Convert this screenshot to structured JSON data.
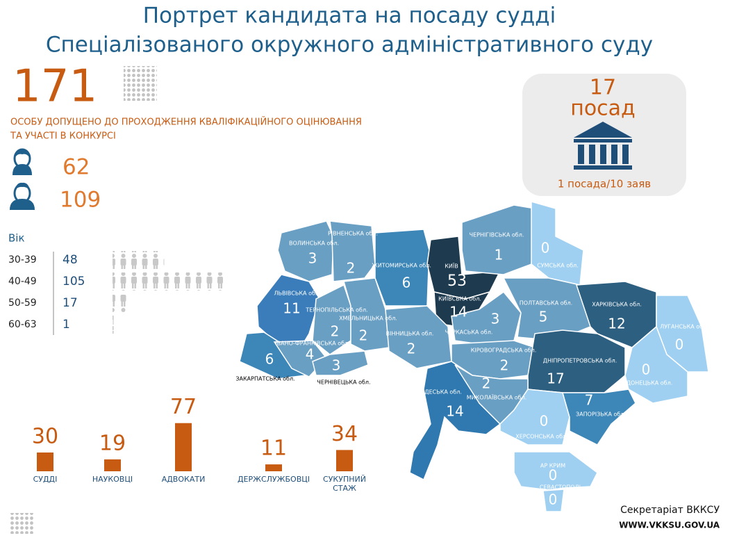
{
  "header": {
    "title_lines": [
      "Портрет кандидата на посаду судді",
      "Спеціалізованого окружного адміністративного суду"
    ]
  },
  "total": {
    "value": "171",
    "description_lines": [
      "ОСОБУ ДОПУЩЕНО ДО ПРОХОДЖЕННЯ КВАЛІФІКАЦІЙНОГО ОЦІНЮВАННЯ",
      "ТА УЧАСТІ В КОНКУРСІ"
    ]
  },
  "gender": {
    "female": 62,
    "male": 109
  },
  "age": {
    "label": "Вік",
    "groups": [
      {
        "range": "30-39",
        "count": 48
      },
      {
        "range": "40-49",
        "count": 105
      },
      {
        "range": "50-59",
        "count": 17
      },
      {
        "range": "60-63",
        "count": 1
      }
    ]
  },
  "chart_data": {
    "type": "bar",
    "categories": [
      "СУДДІ",
      "НАУКОВЦІ",
      "АДВОКАТИ",
      "ДЕРЖСЛУЖБОВЦІ",
      "СУКУПНИЙ СТАЖ"
    ],
    "values": [
      30,
      19,
      77,
      11,
      34
    ],
    "color": "#c75b12"
  },
  "positions": {
    "count": "17",
    "unit": "посад",
    "ratio": "1 посада/10 заяв"
  },
  "map": {
    "regions": [
      {
        "name": "ВОЛИНСЬКА обл.",
        "value": 3,
        "color": "#6a9fc4"
      },
      {
        "name": "РІВНЕНСЬКА обл.",
        "value": 2,
        "color": "#6a9fc4"
      },
      {
        "name": "ЖИТОМИРСЬКА обл.",
        "value": 6,
        "color": "#3d86b8"
      },
      {
        "name": "КИЇВ",
        "value": 53,
        "color": "#1d3a4f"
      },
      {
        "name": "КИЇВСЬКА обл.",
        "value": 14,
        "color": "#1d3a4f"
      },
      {
        "name": "ЧЕРНІГІВСЬКА обл.",
        "value": 1,
        "color": "#6a9fc4"
      },
      {
        "name": "СУМСЬКА обл.",
        "value": 0,
        "color": "#9fd0f2"
      },
      {
        "name": "ЛЬВІВСЬКА обл.",
        "value": 11,
        "color": "#3a7dba"
      },
      {
        "name": "ТЕРНОПІЛЬСЬКА обл.",
        "value": 2,
        "color": "#6a9fc4"
      },
      {
        "name": "ХМЕЛЬНИЦЬКА обл.",
        "value": 2,
        "color": "#6a9fc4"
      },
      {
        "name": "ВІННИЦЬКА обл.",
        "value": 2,
        "color": "#6a9fc4"
      },
      {
        "name": "ЧЕРКАСЬКА обл.",
        "value": 3,
        "color": "#6a9fc4"
      },
      {
        "name": "ПОЛТАВСЬКА обл.",
        "value": 5,
        "color": "#6a9fc4"
      },
      {
        "name": "ХАРКІВСЬКА обл.",
        "value": 12,
        "color": "#2c5f80"
      },
      {
        "name": "ЛУГАНСЬКА обл.",
        "value": 0,
        "color": "#9fd0f2"
      },
      {
        "name": "ЗАКАРПАТСЬКА обл.",
        "value": 6,
        "color": "#3d86b8"
      },
      {
        "name": "ІВАНО-ФРАНКІВСЬКА обл.",
        "value": 4,
        "color": "#6a9fc4"
      },
      {
        "name": "ЧЕРНІВЕЦЬКА обл.",
        "value": 3,
        "color": "#6a9fc4"
      },
      {
        "name": "КІРОВОГРАДСЬКА обл.",
        "value": 2,
        "color": "#6a9fc4"
      },
      {
        "name": "ДНІПРОПЕТРОВСЬКА обл.",
        "value": 17,
        "color": "#2c5f80"
      },
      {
        "name": "ДОНЕЦЬКА обл.",
        "value": 0,
        "color": "#9fd0f2"
      },
      {
        "name": "ОДЕСЬКА обл.",
        "value": 14,
        "color": "#2f79b0"
      },
      {
        "name": "МИКОЛАЇВСЬКА обл.",
        "value": 2,
        "color": "#6a9fc4"
      },
      {
        "name": "ХЕРСОНСЬКА обл.",
        "value": 0,
        "color": "#9fd0f2"
      },
      {
        "name": "ЗАПОРІЗЬКА обл.",
        "value": 7,
        "color": "#3d86b8"
      },
      {
        "name": "АР КРИМ",
        "value": 0,
        "color": "#9fd0f2"
      },
      {
        "name": "СЕВАСТОПОЛЬ",
        "value": 0,
        "color": "#9fd0f2"
      }
    ]
  },
  "footer": {
    "org": "Секретаріат ВККСУ",
    "url": "WWW.VKKSU.GOV.UA"
  }
}
